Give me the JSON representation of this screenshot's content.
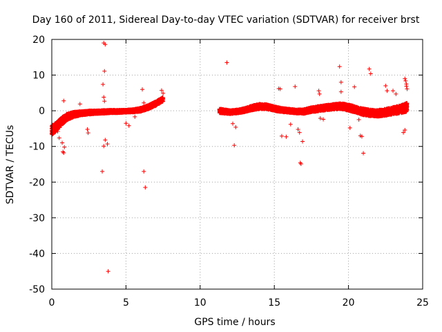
{
  "chart_data": {
    "type": "scatter",
    "title": "Day 160 of 2011, Sidereal Day-to-day VTEC variation (SDTVAR) for receiver brst",
    "xlabel": "GPS time / hours",
    "ylabel": "SDTVAR / TECUs",
    "xlim": [
      0,
      25
    ],
    "ylim": [
      -50,
      20
    ],
    "xticks": [
      "0",
      "5",
      "10",
      "15",
      "20",
      "25"
    ],
    "yticks": [
      "20",
      "10",
      "0",
      "-10",
      "-20",
      "-30",
      "-40",
      "-50"
    ],
    "xtick_values": [
      0,
      5,
      10,
      15,
      20,
      25
    ],
    "ytick_values": [
      20,
      10,
      0,
      -10,
      -20,
      -30,
      -40,
      -50
    ],
    "grid": true,
    "marker": "+",
    "color": "#ff0000",
    "series": [
      {
        "name": "SDTVAR",
        "trend": {
          "x": [
            0.0,
            0.3,
            0.6,
            1.0,
            1.5,
            2.0,
            2.5,
            3.0,
            3.5,
            4.0,
            4.5,
            5.0,
            5.5,
            6.0,
            6.5,
            7.0,
            7.5
          ],
          "y": [
            -5.5,
            -4.5,
            -3.2,
            -1.8,
            -1.0,
            -0.7,
            -0.5,
            -0.4,
            -0.3,
            -0.2,
            -0.2,
            -0.1,
            0.0,
            0.3,
            1.0,
            2.0,
            3.2
          ],
          "spread": [
            2.8,
            2.5,
            2.3,
            1.8,
            1.4,
            1.1,
            1.0,
            0.9,
            0.9,
            0.8,
            0.8,
            0.7,
            0.8,
            1.0,
            1.1,
            1.2,
            1.2
          ]
        },
        "trend2": {
          "x": [
            11.3,
            12.0,
            12.5,
            13.0,
            13.5,
            14.0,
            14.5,
            15.0,
            15.5,
            16.0,
            16.5,
            17.0,
            17.5,
            18.0,
            18.5,
            19.0,
            19.5,
            20.0,
            20.5,
            21.0,
            21.5,
            22.0,
            22.5,
            23.0,
            23.5,
            23.95
          ],
          "y": [
            0.0,
            -0.4,
            -0.2,
            0.2,
            0.8,
            1.2,
            1.1,
            0.6,
            0.2,
            0.0,
            -0.2,
            -0.2,
            0.3,
            0.6,
            0.9,
            1.1,
            1.3,
            0.9,
            0.3,
            -0.3,
            -0.6,
            -0.7,
            -0.4,
            0.0,
            0.4,
            1.0
          ],
          "spread": [
            1.2,
            1.0,
            1.0,
            1.1,
            1.3,
            1.4,
            1.3,
            1.2,
            1.1,
            1.0,
            1.0,
            1.2,
            1.3,
            1.4,
            1.4,
            1.5,
            1.6,
            1.7,
            1.7,
            1.8,
            1.8,
            1.8,
            1.9,
            2.0,
            2.2,
            2.4
          ]
        },
        "outliers": [
          [
            0.4,
            -5.8
          ],
          [
            0.5,
            -7.6
          ],
          [
            0.7,
            -9.0
          ],
          [
            0.75,
            -11.5
          ],
          [
            0.8,
            -11.8
          ],
          [
            0.85,
            -10.2
          ],
          [
            0.8,
            2.8
          ],
          [
            1.9,
            1.9
          ],
          [
            2.4,
            -5.2
          ],
          [
            2.45,
            -6.2
          ],
          [
            3.4,
            -17.0
          ],
          [
            3.5,
            19.0
          ],
          [
            3.55,
            11.1
          ],
          [
            3.6,
            18.6
          ],
          [
            3.45,
            7.4
          ],
          [
            3.5,
            3.8
          ],
          [
            3.55,
            2.7
          ],
          [
            3.5,
            -9.9
          ],
          [
            3.6,
            -8.2
          ],
          [
            3.75,
            -9.3
          ],
          [
            3.8,
            -45.0
          ],
          [
            5.0,
            -3.5
          ],
          [
            5.2,
            -4.2
          ],
          [
            5.6,
            -1.7
          ],
          [
            6.1,
            6.0
          ],
          [
            6.2,
            2.2
          ],
          [
            6.2,
            -17.0
          ],
          [
            6.3,
            -21.5
          ],
          [
            7.4,
            5.7
          ],
          [
            7.5,
            4.9
          ],
          [
            11.8,
            13.5
          ],
          [
            12.3,
            -9.7
          ],
          [
            12.2,
            -3.6
          ],
          [
            12.4,
            -4.6
          ],
          [
            15.3,
            6.2
          ],
          [
            15.4,
            6.1
          ],
          [
            15.5,
            -7.1
          ],
          [
            15.8,
            -7.3
          ],
          [
            16.1,
            -3.8
          ],
          [
            16.4,
            6.8
          ],
          [
            16.6,
            -5.2
          ],
          [
            16.7,
            -6.1
          ],
          [
            16.75,
            -14.6
          ],
          [
            16.8,
            -14.9
          ],
          [
            16.9,
            -8.6
          ],
          [
            18.0,
            5.6
          ],
          [
            18.05,
            4.7
          ],
          [
            18.1,
            -2.1
          ],
          [
            18.3,
            -2.4
          ],
          [
            19.4,
            12.4
          ],
          [
            19.5,
            8.0
          ],
          [
            19.5,
            5.3
          ],
          [
            20.1,
            -4.8
          ],
          [
            20.4,
            6.7
          ],
          [
            20.7,
            -2.5
          ],
          [
            20.8,
            -7.0
          ],
          [
            20.9,
            -7.2
          ],
          [
            21.0,
            -11.9
          ],
          [
            21.4,
            11.7
          ],
          [
            21.5,
            10.4
          ],
          [
            22.5,
            7.0
          ],
          [
            22.6,
            5.6
          ],
          [
            23.0,
            5.6
          ],
          [
            23.2,
            4.7
          ],
          [
            23.7,
            -6.1
          ],
          [
            23.8,
            -5.4
          ],
          [
            23.8,
            9.0
          ],
          [
            23.85,
            8.4
          ],
          [
            23.9,
            7.5
          ],
          [
            23.9,
            6.9
          ],
          [
            23.95,
            6.1
          ]
        ]
      }
    ]
  }
}
